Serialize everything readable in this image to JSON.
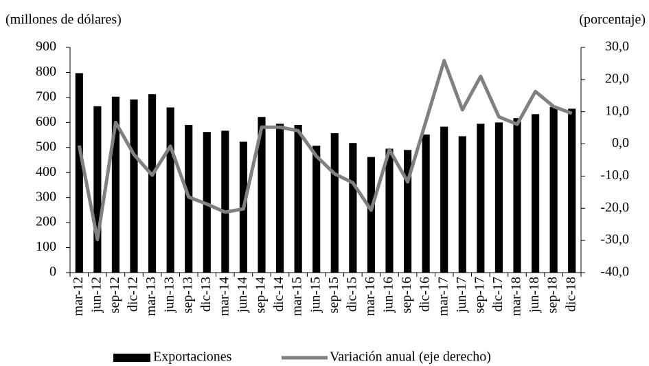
{
  "chart_data": {
    "type": "bar_line",
    "y_label": "(millones  de dólares)",
    "y2_label": "(porcentaje)",
    "categories": [
      "mar-12",
      "jun-12",
      "sep-12",
      "dic-12",
      "mar-13",
      "jun-13",
      "sep-13",
      "dic-13",
      "mar-14",
      "jun-14",
      "sep-14",
      "dic-14",
      "mar-15",
      "jun-15",
      "sep-15",
      "dic-15",
      "mar-16",
      "jun-16",
      "sep-16",
      "dic-16",
      "mar-17",
      "jun-17",
      "sep-17",
      "dic-17",
      "mar-18",
      "jun-18",
      "sep-18",
      "dic-18"
    ],
    "series": [
      {
        "name": "Exportaciones",
        "type": "bar",
        "axis": "y",
        "color": "#000000",
        "values": [
          797,
          665,
          703,
          692,
          713,
          660,
          590,
          562,
          567,
          523,
          622,
          595,
          590,
          507,
          557,
          518,
          462,
          495,
          490,
          552,
          583,
          545,
          595,
          600,
          617,
          633,
          662,
          655
        ]
      },
      {
        "name": "Variación anual (eje derecho)",
        "type": "line",
        "axis": "y2",
        "color": "#808080",
        "values": [
          -0.5,
          -29.7,
          6.7,
          -3.3,
          -9.7,
          -0.7,
          -16.5,
          -18.7,
          -21.2,
          -20.2,
          5.2,
          5.2,
          4.1,
          -3.8,
          -9.3,
          -12.1,
          -20.6,
          -1.8,
          -11.8,
          7.0,
          25.9,
          10.6,
          21.0,
          8.4,
          6.1,
          16.3,
          11.6,
          9.5
        ]
      }
    ],
    "ylim": [
      0,
      900
    ],
    "yticks": [
      0,
      100,
      200,
      300,
      400,
      500,
      600,
      700,
      800,
      900
    ],
    "y2lim": [
      -40,
      30
    ],
    "y2ticks": [
      {
        "value": -40,
        "label": "-40,0"
      },
      {
        "value": -30,
        "label": "-30,0"
      },
      {
        "value": -20,
        "label": "-20,0"
      },
      {
        "value": -10,
        "label": "-10,0"
      },
      {
        "value": 0,
        "label": "0,0"
      },
      {
        "value": 10,
        "label": "10,0"
      },
      {
        "value": 20,
        "label": "20,0"
      },
      {
        "value": 30,
        "label": "30,0"
      }
    ],
    "legend": "bottom"
  }
}
